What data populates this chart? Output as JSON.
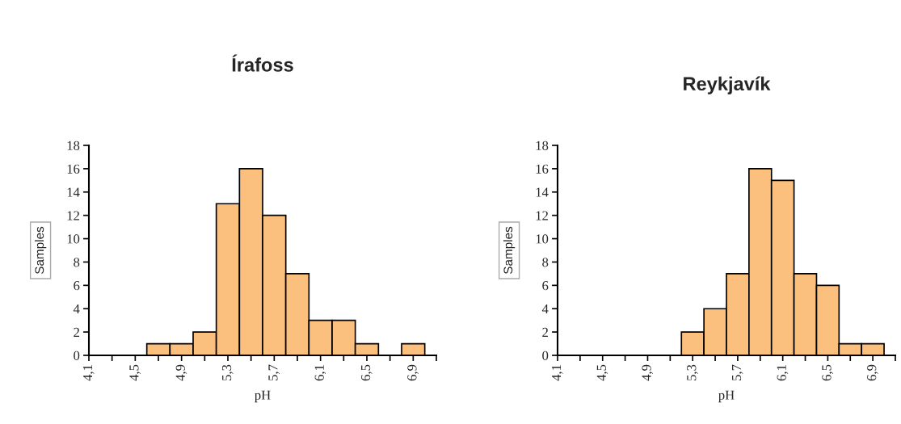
{
  "chart_data": [
    {
      "type": "histogram",
      "title": "Írafoss",
      "xlabel": "pH",
      "ylabel": "Samples",
      "color": "#fbbf7e",
      "bins": [
        4.6,
        4.8,
        5.0,
        5.2,
        5.4,
        5.6,
        5.8,
        6.0,
        6.2,
        6.4,
        6.6,
        6.8,
        7.0
      ],
      "values": [
        1,
        1,
        2,
        13,
        16,
        12,
        7,
        3,
        3,
        1,
        0,
        1
      ],
      "xlim": [
        4.1,
        7.1
      ],
      "xticks": [
        {
          "value": 4.1,
          "label": "4,1"
        },
        {
          "value": 4.3,
          "label": null
        },
        {
          "value": 4.5,
          "label": "4,5"
        },
        {
          "value": 4.7,
          "label": null
        },
        {
          "value": 4.9,
          "label": "4,9"
        },
        {
          "value": 5.1,
          "label": null
        },
        {
          "value": 5.3,
          "label": "5,3"
        },
        {
          "value": 5.5,
          "label": null
        },
        {
          "value": 5.7,
          "label": "5,7"
        },
        {
          "value": 5.9,
          "label": null
        },
        {
          "value": 6.1,
          "label": "6,1"
        },
        {
          "value": 6.3,
          "label": null
        },
        {
          "value": 6.5,
          "label": "6,5"
        },
        {
          "value": 6.7,
          "label": null
        },
        {
          "value": 6.9,
          "label": "6,9"
        },
        {
          "value": 7.1,
          "label": null
        }
      ],
      "ylim": [
        0,
        18
      ],
      "yticks": [
        0,
        2,
        4,
        6,
        8,
        10,
        12,
        14,
        16,
        18
      ],
      "grid": false,
      "legend": false
    },
    {
      "type": "histogram",
      "title": "Reykjavík",
      "xlabel": "pH",
      "ylabel": "Samples",
      "color": "#fbbf7e",
      "bins": [
        5.2,
        5.4,
        5.6,
        5.8,
        6.0,
        6.2,
        6.4,
        6.6,
        6.8,
        7.0
      ],
      "values": [
        2,
        4,
        7,
        16,
        15,
        7,
        6,
        1,
        1
      ],
      "xlim": [
        4.1,
        7.1
      ],
      "xticks": [
        {
          "value": 4.1,
          "label": "4,1"
        },
        {
          "value": 4.3,
          "label": null
        },
        {
          "value": 4.5,
          "label": "4,5"
        },
        {
          "value": 4.7,
          "label": null
        },
        {
          "value": 4.9,
          "label": "4,9"
        },
        {
          "value": 5.1,
          "label": null
        },
        {
          "value": 5.3,
          "label": "5,3"
        },
        {
          "value": 5.5,
          "label": null
        },
        {
          "value": 5.7,
          "label": "5,7"
        },
        {
          "value": 5.9,
          "label": null
        },
        {
          "value": 6.1,
          "label": "6,1"
        },
        {
          "value": 6.3,
          "label": null
        },
        {
          "value": 6.5,
          "label": "6,5"
        },
        {
          "value": 6.7,
          "label": null
        },
        {
          "value": 6.9,
          "label": "6,9"
        },
        {
          "value": 7.1,
          "label": null
        }
      ],
      "ylim": [
        0,
        18
      ],
      "yticks": [
        0,
        2,
        4,
        6,
        8,
        10,
        12,
        14,
        16,
        18
      ],
      "grid": false,
      "legend": false
    }
  ]
}
